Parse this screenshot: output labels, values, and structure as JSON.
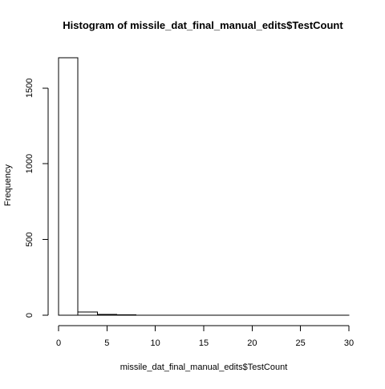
{
  "chart_data": {
    "type": "histogram",
    "title": "Histogram of missile_dat_final_manual_edits$TestCount",
    "xlabel": "missile_dat_final_manual_edits$TestCount",
    "ylabel": "Frequency",
    "bin_edges": [
      0,
      2,
      4,
      6,
      8,
      10,
      12,
      14,
      16,
      18,
      20,
      22,
      24,
      26,
      28,
      30
    ],
    "frequencies": [
      1700,
      22,
      6,
      2,
      1,
      1,
      1,
      1,
      1,
      1,
      1,
      1,
      1,
      1,
      1
    ],
    "xlim": [
      0,
      30
    ],
    "ylim": [
      0,
      1700
    ],
    "x_ticks": [
      0,
      5,
      10,
      15,
      20,
      25,
      30
    ],
    "y_ticks": [
      0,
      500,
      1000,
      1500
    ],
    "x_tick_labels": [
      "0",
      "5",
      "10",
      "15",
      "20",
      "25",
      "30"
    ],
    "y_tick_labels": [
      "0",
      "500",
      "1000",
      "1500"
    ],
    "grid": false,
    "bar_fill": "#ffffff",
    "bar_stroke": "#000000"
  }
}
